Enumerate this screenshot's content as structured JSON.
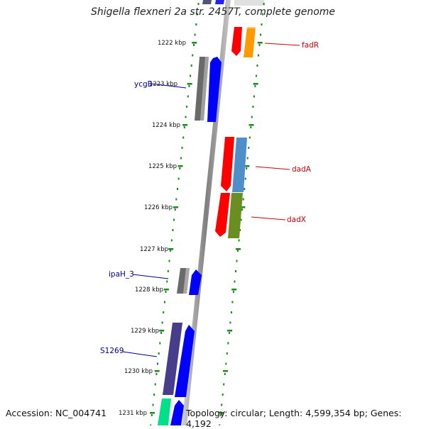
{
  "title": "Shigella flexneri 2a str. 2457T, complete genome",
  "footer": {
    "accession": "Accession: NC_004741",
    "topology": "Topology: circular; Length: 4,599,354 bp; Genes: 4,192"
  },
  "scale_ticks": [
    "1222 kbp",
    "1223 kbp",
    "1224 kbp",
    "1225 kbp",
    "1226 kbp",
    "1227 kbp",
    "1228 kbp",
    "1229 kbp",
    "1230 kbp",
    "1231 kbp"
  ],
  "gene_labels": [
    {
      "text": "ycgB",
      "color": "#00008b"
    },
    {
      "text": "ipaH_3",
      "color": "#00008b"
    },
    {
      "text": "S1269",
      "color": "#00008b"
    },
    {
      "text": "fadR",
      "color": "#cc0000"
    },
    {
      "text": "dadA",
      "color": "#cc0000"
    },
    {
      "text": "dadX",
      "color": "#cc0000"
    }
  ],
  "colors": {
    "backbone": "#8c8c8c",
    "dots": "#1a8a1a",
    "gene_red": "#ff0000",
    "gene_orange": "#ff9900",
    "gene_gray": "#707070",
    "gene_blue": "#0000ff",
    "gene_steelblue": "#4f8fc9",
    "gene_olive": "#6b8e23",
    "gene_purple": "#483d8b",
    "gene_green": "#00e08a"
  }
}
